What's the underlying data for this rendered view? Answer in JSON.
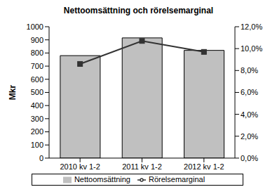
{
  "chart_data": {
    "type": "bar",
    "title": "Nettoomsättning och rörelsemarginal",
    "y_label": "Mkr",
    "categories": [
      "2010 kv 1-2",
      "2011 kv 1-2",
      "2012 kv 1-2"
    ],
    "series": [
      {
        "name": "Nettoomsättning",
        "type": "bar",
        "color": "#c0c0c0",
        "values": [
          780,
          915,
          820
        ]
      },
      {
        "name": "Rörelsemarginal",
        "type": "line",
        "color": "#333333",
        "marker": "square",
        "axis": "y2",
        "values": [
          8.6,
          10.7,
          9.7
        ]
      }
    ],
    "ylim": [
      0,
      1000
    ],
    "yticks": [
      0,
      100,
      200,
      300,
      400,
      500,
      600,
      700,
      800,
      900,
      1000
    ],
    "y2lim": [
      0,
      12
    ],
    "y2ticks": [
      {
        "value": 0,
        "label": "0,0%"
      },
      {
        "value": 2,
        "label": "2,0%"
      },
      {
        "value": 4,
        "label": "4,0%"
      },
      {
        "value": 6,
        "label": "6,0%"
      },
      {
        "value": 8,
        "label": "8,0%"
      },
      {
        "value": 10,
        "label": "10,0%"
      },
      {
        "value": 12,
        "label": "12,0%"
      }
    ],
    "grid": false,
    "legend": "bottom"
  }
}
